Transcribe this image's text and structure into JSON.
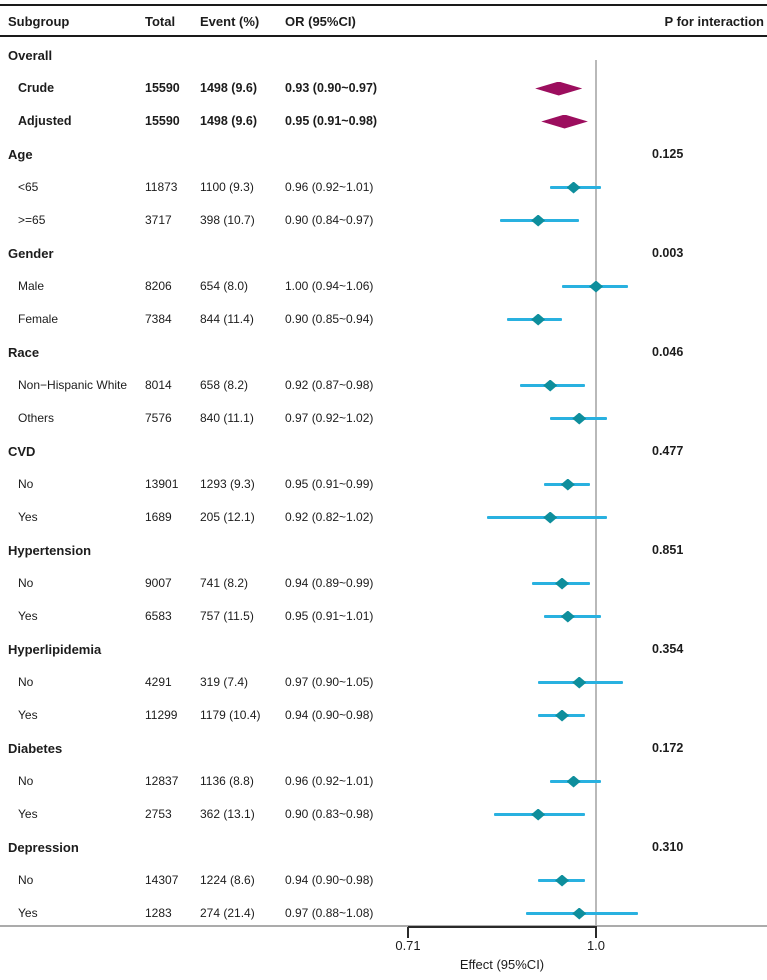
{
  "header": {
    "subgroup": "Subgroup",
    "total": "Total",
    "event": "Event (%)",
    "or": "OR (95%CI)",
    "p": "P for interaction"
  },
  "axis": {
    "tick_left": "0.71",
    "tick_right": "1.0",
    "label": "Effect (95%CI)"
  },
  "colors": {
    "overall_diamond": "#9c0e5e",
    "subgroup_diamond": "#0e8e9c",
    "ci_line": "#29b1e0",
    "ref_line": "#b9b9b9",
    "rule": "#1a1a1a"
  },
  "chart_data": {
    "type": "forest",
    "x_axis": {
      "label": "Effect (95%CI)",
      "ticks": [
        0.71,
        1.0
      ],
      "scale": "log",
      "reference_line": 1.0
    },
    "rows": [
      {
        "kind": "section",
        "label": "Overall",
        "p": ""
      },
      {
        "kind": "summary",
        "label": "Crude",
        "total": "15590",
        "event": "1498 (9.6)",
        "or_text": "0.93 (0.90~0.97)",
        "est": 0.93,
        "lo": 0.9,
        "hi": 0.97
      },
      {
        "kind": "summary",
        "label": "Adjusted",
        "total": "15590",
        "event": "1498 (9.6)",
        "or_text": "0.95 (0.91~0.98)",
        "est": 0.95,
        "lo": 0.91,
        "hi": 0.98
      },
      {
        "kind": "section",
        "label": "Age",
        "p": "0.125"
      },
      {
        "kind": "item",
        "label": "<65",
        "total": "11873",
        "event": "1100 (9.3)",
        "or_text": "0.96 (0.92~1.01)",
        "est": 0.96,
        "lo": 0.92,
        "hi": 1.01
      },
      {
        "kind": "item",
        "label": ">=65",
        "total": "3717",
        "event": "398 (10.7)",
        "or_text": "0.90 (0.84~0.97)",
        "est": 0.9,
        "lo": 0.84,
        "hi": 0.97
      },
      {
        "kind": "section",
        "label": "Gender",
        "p": "0.003"
      },
      {
        "kind": "item",
        "label": "Male",
        "total": "8206",
        "event": "654 (8.0)",
        "or_text": "1.00 (0.94~1.06)",
        "est": 1.0,
        "lo": 0.94,
        "hi": 1.06
      },
      {
        "kind": "item",
        "label": "Female",
        "total": "7384",
        "event": "844 (11.4)",
        "or_text": "0.90 (0.85~0.94)",
        "est": 0.9,
        "lo": 0.85,
        "hi": 0.94
      },
      {
        "kind": "section",
        "label": "Race",
        "p": "0.046"
      },
      {
        "kind": "item",
        "label": "Non−Hispanic White",
        "total": "8014",
        "event": "658 (8.2)",
        "or_text": "0.92 (0.87~0.98)",
        "est": 0.92,
        "lo": 0.87,
        "hi": 0.98
      },
      {
        "kind": "item",
        "label": "Others",
        "total": "7576",
        "event": "840 (11.1)",
        "or_text": "0.97 (0.92~1.02)",
        "est": 0.97,
        "lo": 0.92,
        "hi": 1.02
      },
      {
        "kind": "section",
        "label": "CVD",
        "p": "0.477"
      },
      {
        "kind": "item",
        "label": "No",
        "total": "13901",
        "event": "1293 (9.3)",
        "or_text": "0.95 (0.91~0.99)",
        "est": 0.95,
        "lo": 0.91,
        "hi": 0.99
      },
      {
        "kind": "item",
        "label": "Yes",
        "total": "1689",
        "event": "205 (12.1)",
        "or_text": "0.92 (0.82~1.02)",
        "est": 0.92,
        "lo": 0.82,
        "hi": 1.02
      },
      {
        "kind": "section",
        "label": "Hypertension",
        "p": "0.851"
      },
      {
        "kind": "item",
        "label": "No",
        "total": "9007",
        "event": "741 (8.2)",
        "or_text": "0.94 (0.89~0.99)",
        "est": 0.94,
        "lo": 0.89,
        "hi": 0.99
      },
      {
        "kind": "item",
        "label": "Yes",
        "total": "6583",
        "event": "757 (11.5)",
        "or_text": "0.95 (0.91~1.01)",
        "est": 0.95,
        "lo": 0.91,
        "hi": 1.01
      },
      {
        "kind": "section",
        "label": "Hyperlipidemia",
        "p": "0.354"
      },
      {
        "kind": "item",
        "label": "No",
        "total": "4291",
        "event": "319 (7.4)",
        "or_text": "0.97 (0.90~1.05)",
        "est": 0.97,
        "lo": 0.9,
        "hi": 1.05
      },
      {
        "kind": "item",
        "label": "Yes",
        "total": "11299",
        "event": "1179 (10.4)",
        "or_text": "0.94 (0.90~0.98)",
        "est": 0.94,
        "lo": 0.9,
        "hi": 0.98
      },
      {
        "kind": "section",
        "label": "Diabetes",
        "p": "0.172"
      },
      {
        "kind": "item",
        "label": "No",
        "total": "12837",
        "event": "1136 (8.8)",
        "or_text": "0.96 (0.92~1.01)",
        "est": 0.96,
        "lo": 0.92,
        "hi": 1.01
      },
      {
        "kind": "item",
        "label": "Yes",
        "total": "2753",
        "event": "362 (13.1)",
        "or_text": "0.90 (0.83~0.98)",
        "est": 0.9,
        "lo": 0.83,
        "hi": 0.98
      },
      {
        "kind": "section",
        "label": "Depression",
        "p": "0.310"
      },
      {
        "kind": "item",
        "label": "No",
        "total": "14307",
        "event": "1224 (8.6)",
        "or_text": "0.94 (0.90~0.98)",
        "est": 0.94,
        "lo": 0.9,
        "hi": 0.98
      },
      {
        "kind": "item",
        "label": "Yes",
        "total": "1283",
        "event": "274 (21.4)",
        "or_text": "0.97 (0.88~1.08)",
        "est": 0.97,
        "lo": 0.88,
        "hi": 1.08
      }
    ]
  }
}
